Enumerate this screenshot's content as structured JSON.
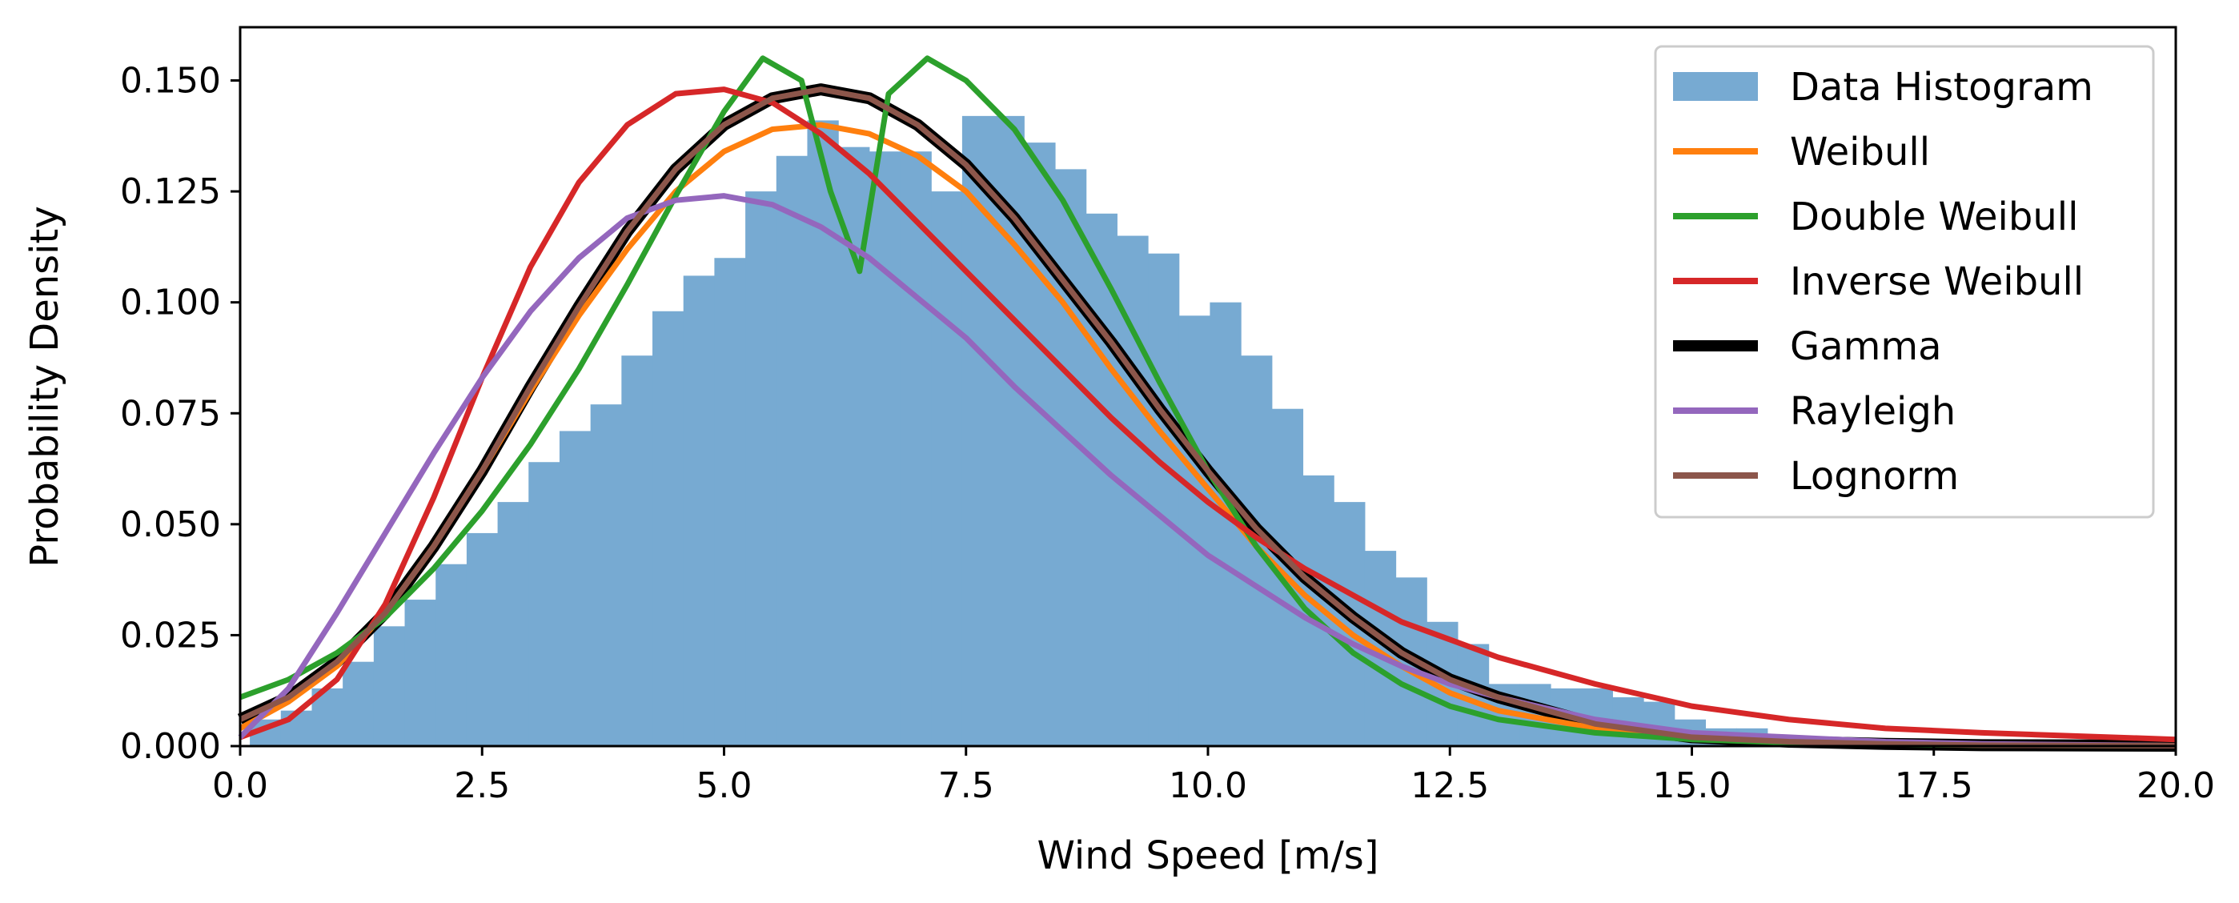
{
  "chart_data": {
    "type": "histogram-with-fitted-curves",
    "xlabel": "Wind Speed [m/s]",
    "ylabel": "Probability Density",
    "xlim": [
      0,
      20
    ],
    "ylim": [
      0,
      0.162
    ],
    "xticks": [
      0,
      2.5,
      5,
      7.5,
      10,
      12.5,
      15,
      17.5,
      20
    ],
    "xtick_labels": [
      "0.0",
      "2.5",
      "5.0",
      "7.5",
      "10.0",
      "12.5",
      "15.0",
      "17.5",
      "20.0"
    ],
    "yticks": [
      0,
      0.025,
      0.05,
      0.075,
      0.1,
      0.125,
      0.15
    ],
    "ytick_labels": [
      "0.000",
      "0.025",
      "0.050",
      "0.075",
      "0.100",
      "0.125",
      "0.150"
    ],
    "legend_position": "top-right",
    "histogram": {
      "name": "Data Histogram",
      "color": "#77aad2",
      "bin_start": 0.1,
      "bin_width": 0.32,
      "values": [
        0.006,
        0.008,
        0.013,
        0.019,
        0.027,
        0.033,
        0.041,
        0.048,
        0.055,
        0.064,
        0.071,
        0.077,
        0.088,
        0.098,
        0.106,
        0.11,
        0.125,
        0.133,
        0.141,
        0.135,
        0.134,
        0.134,
        0.125,
        0.142,
        0.142,
        0.136,
        0.13,
        0.12,
        0.115,
        0.111,
        0.097,
        0.1,
        0.088,
        0.076,
        0.061,
        0.055,
        0.044,
        0.038,
        0.028,
        0.023,
        0.014,
        0.014,
        0.013,
        0.013,
        0.011,
        0.01,
        0.006,
        0.004,
        0.004,
        0.002,
        0.002,
        0.002,
        0.001,
        0.001,
        0.001,
        0.001,
        0.001,
        0.0005,
        0.0005,
        0.0005,
        0.0003,
        0.0003
      ]
    },
    "series": [
      {
        "name": "Weibull",
        "color": "#ff7f0e",
        "width": 7,
        "x": [
          0,
          0.5,
          1,
          1.5,
          2,
          2.5,
          3,
          3.5,
          4,
          4.5,
          5,
          5.5,
          6,
          6.5,
          7,
          7.5,
          8,
          8.5,
          9,
          9.5,
          10,
          10.5,
          11,
          11.5,
          12,
          12.5,
          13,
          14,
          15,
          16,
          17,
          18,
          20
        ],
        "y": [
          0.004,
          0.01,
          0.018,
          0.03,
          0.045,
          0.062,
          0.08,
          0.097,
          0.112,
          0.125,
          0.134,
          0.139,
          0.14,
          0.138,
          0.133,
          0.125,
          0.113,
          0.1,
          0.085,
          0.071,
          0.058,
          0.045,
          0.034,
          0.025,
          0.018,
          0.012,
          0.008,
          0.004,
          0.002,
          0.001,
          0.0005,
          0.0003,
          0.0001
        ]
      },
      {
        "name": "Double Weibull",
        "color": "#2ca02c",
        "width": 7,
        "x": [
          0,
          0.5,
          1,
          1.5,
          2,
          2.5,
          3,
          3.5,
          4,
          4.5,
          5,
          5.4,
          5.8,
          6.1,
          6.4,
          6.7,
          7.1,
          7.5,
          8,
          8.5,
          9,
          9.5,
          10,
          10.5,
          11,
          11.5,
          12,
          12.5,
          13,
          14,
          15,
          16,
          17,
          18,
          20
        ],
        "y": [
          0.011,
          0.015,
          0.021,
          0.029,
          0.04,
          0.053,
          0.068,
          0.085,
          0.104,
          0.124,
          0.143,
          0.155,
          0.15,
          0.125,
          0.107,
          0.147,
          0.155,
          0.15,
          0.139,
          0.123,
          0.103,
          0.082,
          0.062,
          0.045,
          0.031,
          0.021,
          0.014,
          0.009,
          0.006,
          0.003,
          0.0015,
          0.0008,
          0.0004,
          0.0002,
          0.0001
        ]
      },
      {
        "name": "Inverse Weibull",
        "color": "#d62728",
        "width": 7,
        "x": [
          0,
          0.5,
          1,
          1.5,
          2,
          2.5,
          3,
          3.5,
          4,
          4.5,
          5,
          5.5,
          6,
          6.5,
          7,
          7.5,
          8,
          8.5,
          9,
          9.5,
          10,
          10.5,
          11,
          11.5,
          12,
          12.5,
          13,
          14,
          15,
          16,
          17,
          18,
          20
        ],
        "y": [
          0.002,
          0.006,
          0.015,
          0.032,
          0.056,
          0.083,
          0.108,
          0.127,
          0.14,
          0.147,
          0.148,
          0.145,
          0.138,
          0.129,
          0.118,
          0.107,
          0.096,
          0.085,
          0.074,
          0.064,
          0.055,
          0.047,
          0.04,
          0.034,
          0.028,
          0.024,
          0.02,
          0.014,
          0.009,
          0.006,
          0.004,
          0.003,
          0.0015
        ]
      },
      {
        "name": "Gamma",
        "color": "#000000",
        "width": 15,
        "x": [
          0,
          0.5,
          1,
          1.5,
          2,
          2.5,
          3,
          3.5,
          4,
          4.5,
          5,
          5.5,
          6,
          6.5,
          7,
          7.5,
          8,
          8.5,
          9,
          9.5,
          10,
          10.5,
          11,
          11.5,
          12,
          12.5,
          13,
          14,
          15,
          16,
          17,
          18,
          20
        ],
        "y": [
          0.006,
          0.011,
          0.019,
          0.03,
          0.045,
          0.062,
          0.081,
          0.099,
          0.116,
          0.13,
          0.14,
          0.146,
          0.148,
          0.146,
          0.14,
          0.131,
          0.119,
          0.105,
          0.091,
          0.076,
          0.062,
          0.049,
          0.038,
          0.029,
          0.021,
          0.015,
          0.011,
          0.005,
          0.002,
          0.001,
          0.0005,
          0.0002,
          0.0001
        ]
      },
      {
        "name": "Rayleigh",
        "color": "#9467bd",
        "width": 7,
        "x": [
          0,
          0.5,
          1,
          1.5,
          2,
          2.5,
          3,
          3.5,
          4,
          4.5,
          5,
          5.5,
          6,
          6.5,
          7,
          7.5,
          8,
          8.5,
          9,
          9.5,
          10,
          10.5,
          11,
          11.5,
          12,
          12.5,
          13,
          14,
          15,
          16,
          17,
          18,
          20
        ],
        "y": [
          0.002,
          0.013,
          0.03,
          0.048,
          0.066,
          0.083,
          0.098,
          0.11,
          0.119,
          0.123,
          0.124,
          0.122,
          0.117,
          0.11,
          0.101,
          0.092,
          0.081,
          0.071,
          0.061,
          0.052,
          0.043,
          0.036,
          0.029,
          0.023,
          0.018,
          0.014,
          0.011,
          0.006,
          0.003,
          0.002,
          0.001,
          0.0005,
          0.0001
        ]
      },
      {
        "name": "Lognorm",
        "color": "#8c564b",
        "width": 7,
        "x": [
          0,
          0.5,
          1,
          1.5,
          2,
          2.5,
          3,
          3.5,
          4,
          4.5,
          5,
          5.5,
          6,
          6.5,
          7,
          7.5,
          8,
          8.5,
          9,
          9.5,
          10,
          10.5,
          11,
          11.5,
          12,
          12.5,
          13,
          14,
          15,
          16,
          17,
          18,
          20
        ],
        "y": [
          0.006,
          0.011,
          0.019,
          0.03,
          0.045,
          0.062,
          0.081,
          0.099,
          0.116,
          0.13,
          0.14,
          0.146,
          0.148,
          0.146,
          0.14,
          0.131,
          0.119,
          0.105,
          0.091,
          0.076,
          0.062,
          0.049,
          0.038,
          0.029,
          0.021,
          0.015,
          0.011,
          0.005,
          0.002,
          0.001,
          0.0005,
          0.0002,
          0.0001
        ]
      }
    ],
    "legend": [
      {
        "label": "Data Histogram",
        "kind": "patch",
        "color": "#77aad2"
      },
      {
        "label": "Weibull",
        "kind": "line",
        "color": "#ff7f0e"
      },
      {
        "label": "Double Weibull",
        "kind": "line",
        "color": "#2ca02c"
      },
      {
        "label": "Inverse Weibull",
        "kind": "line",
        "color": "#d62728"
      },
      {
        "label": "Gamma",
        "kind": "line",
        "color": "#000000"
      },
      {
        "label": "Rayleigh",
        "kind": "line",
        "color": "#9467bd"
      },
      {
        "label": "Lognorm",
        "kind": "line",
        "color": "#8c564b"
      }
    ]
  }
}
